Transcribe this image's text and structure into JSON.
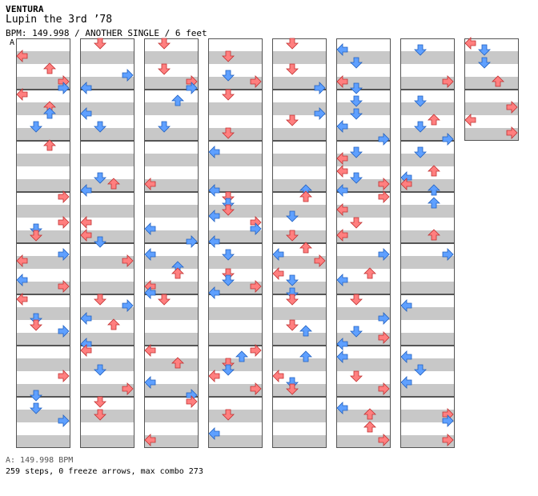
{
  "header": {
    "artist": "VENTURA",
    "title": "Lupin the 3rd ’78",
    "meta": "BPM: 149.998 / ANOTHER SINGLE / 6 feet",
    "bpm_marker": "A"
  },
  "footer": {
    "bpm_line": "A: 149.998 BPM",
    "stats_line": "259 steps, 0 freeze arrows, max combo 273"
  },
  "colors": {
    "red_arrow": "#ff7f7f",
    "blue_arrow": "#5fa0ff",
    "row_gray": "#c8c8c8",
    "border": "#555555"
  },
  "chart": {
    "column_count": 8,
    "measures_per_column": 8,
    "lane_order": [
      "left",
      "down",
      "up",
      "right"
    ],
    "notes": [
      [
        [
          2,
          2
        ],
        [
          5,
          0
        ],
        [
          6,
          2
        ],
        [
          6,
          1
        ],
        [
          7,
          1
        ],
        [
          8,
          1
        ],
        [
          9,
          1
        ],
        [
          9,
          2
        ],
        [
          13,
          1
        ],
        [
          13,
          2
        ],
        [
          14,
          0
        ],
        [
          14,
          1
        ],
        [
          15,
          0
        ],
        [
          15,
          3
        ],
        [
          18,
          1
        ],
        [
          18,
          2
        ],
        [
          23,
          3
        ],
        [
          24,
          0
        ],
        [
          25,
          2
        ],
        [
          26,
          3
        ],
        [
          27,
          1
        ],
        [
          28,
          0
        ],
        [
          29,
          3
        ],
        [
          30,
          3
        ],
        [
          34,
          0
        ]
      ],
      [
        [
          1,
          0
        ],
        [
          2,
          2
        ],
        [
          3,
          1
        ],
        [
          5,
          3
        ],
        [
          6,
          3
        ],
        [
          9,
          0
        ],
        [
          10,
          1
        ],
        [
          12,
          2
        ],
        [
          14,
          2
        ],
        [
          16,
          3
        ],
        [
          18,
          1
        ],
        [
          19,
          3
        ],
        [
          22,
          3
        ],
        [
          24,
          2
        ],
        [
          26,
          3
        ],
        [
          28,
          2
        ],
        [
          30,
          1
        ],
        [
          31,
          2
        ],
        [
          33,
          1
        ],
        [
          36,
          3
        ],
        [
          38,
          0
        ],
        [
          39,
          1
        ],
        [
          40,
          2
        ],
        [
          42,
          0
        ],
        [
          44,
          3
        ],
        [
          46,
          1
        ]
      ]
    ]
  }
}
